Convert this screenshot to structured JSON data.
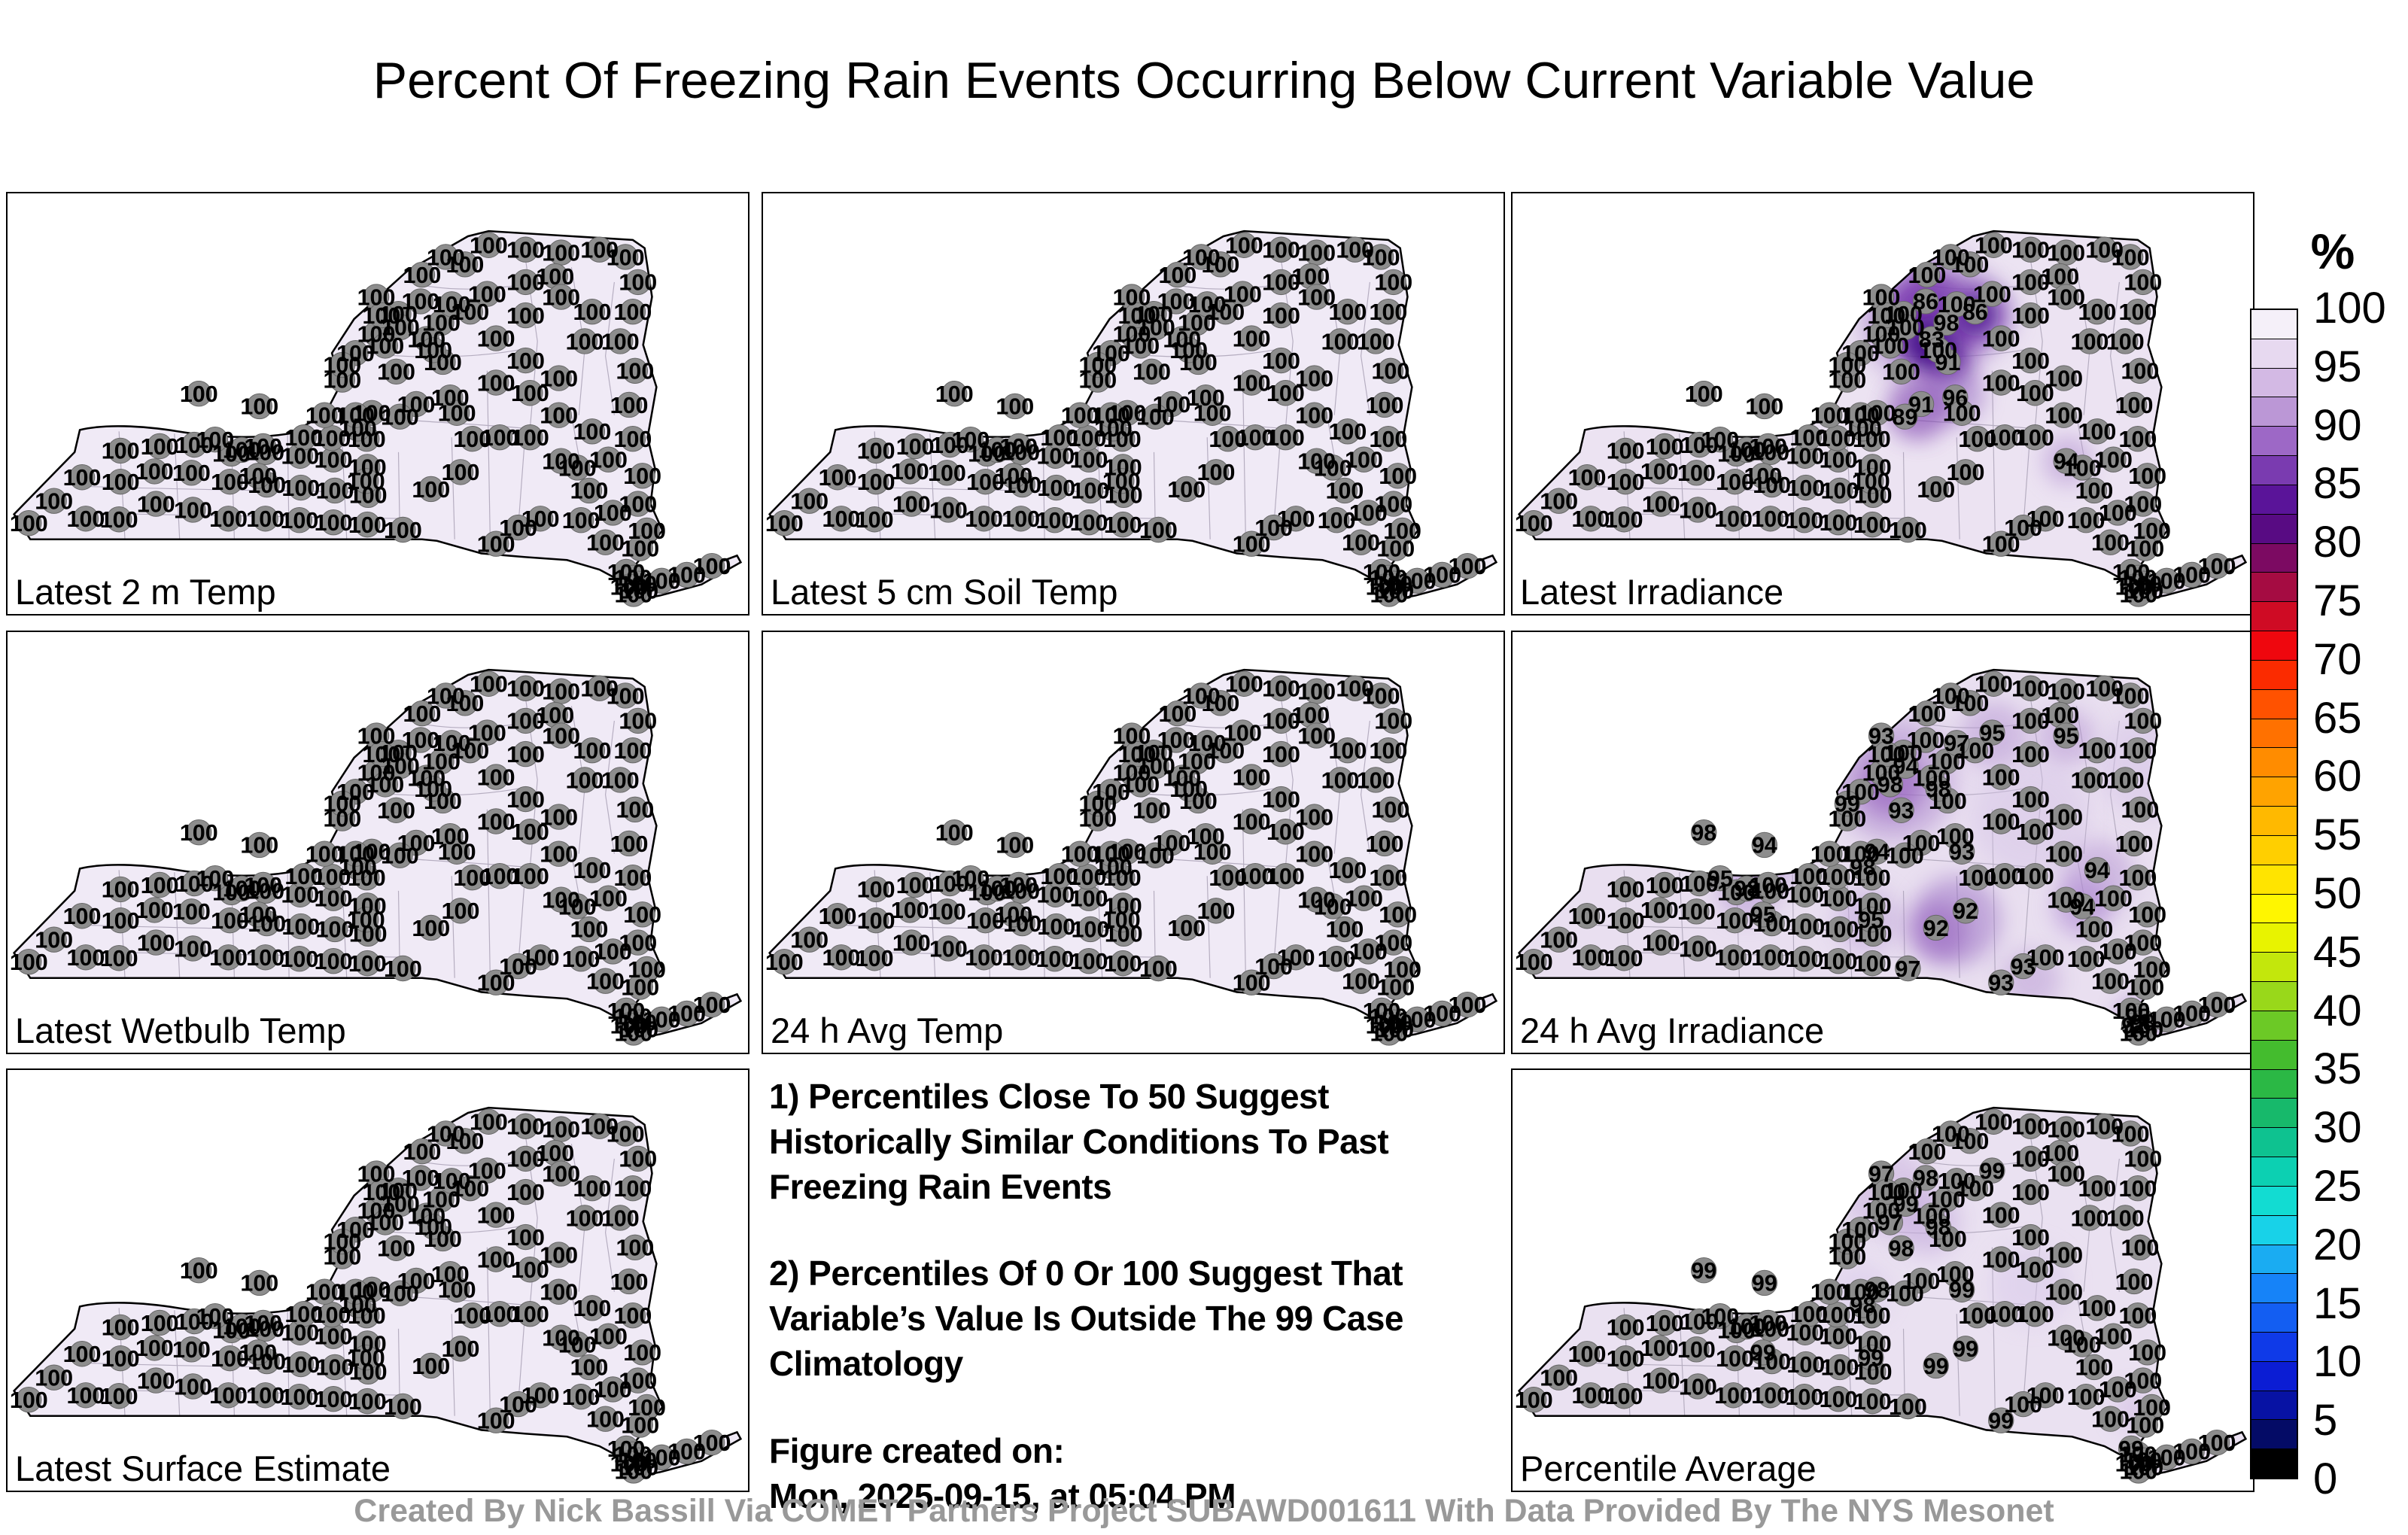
{
  "title": "Percent Of Freezing Rain Events Occurring Below Current Variable Value",
  "credit": "Created By Nick Bassill Via COMET Partners Project SUBAWD001611 With Data Provided By The NYS Mesonet",
  "notes": {
    "note1": "1) Percentiles Close To 50 Suggest Historically Similar Conditions To Past Freezing Rain Events",
    "note2": "2) Percentiles Of 0 Or 100 Suggest That Variable’s Value Is Outside The 99 Case Climatology",
    "created_label": "Figure created on:",
    "created_value": "Mon, 2025-09-15, at 05:04 PM"
  },
  "colorbar": {
    "title": "%",
    "ticks": [
      "100",
      "95",
      "90",
      "85",
      "80",
      "75",
      "70",
      "65",
      "60",
      "55",
      "50",
      "45",
      "40",
      "35",
      "30",
      "25",
      "20",
      "15",
      "10",
      "5",
      "0"
    ],
    "segments": [
      "#f5f0f9",
      "#e7d9f0",
      "#d3b9e4",
      "#bb97d6",
      "#9d68c6",
      "#7a3bb0",
      "#5a1499",
      "#580b83",
      "#7c0a62",
      "#a50c42",
      "#cf0b24",
      "#ef070e",
      "#fb2b00",
      "#ff5200",
      "#ff7100",
      "#ff8c00",
      "#ffa300",
      "#ffb900",
      "#ffcf00",
      "#ffe400",
      "#fff600",
      "#e8f300",
      "#c3e70c",
      "#99d81a",
      "#6cc926",
      "#44bc2e",
      "#2bb845",
      "#17b96b",
      "#0ec290",
      "#0cd0b2",
      "#12dcd2",
      "#18d2e8",
      "#1aacf2",
      "#1683f8",
      "#135ef2",
      "#0f3ae8",
      "#0b1dd4",
      "#0712a4",
      "#040b66",
      "#000000"
    ]
  },
  "chart_data": {
    "type": "scatter",
    "note": "Eight New York State station maps; each station labeled with percent of freezing rain events below current value (0-100).",
    "style": {
      "station_fill": "#8d8d8d",
      "station_edge": "#666666",
      "county_line": "#b5adc0",
      "state_border": "#000000"
    },
    "stations": [
      [
        28,
        446
      ],
      [
        62,
        416
      ],
      [
        105,
        440
      ],
      [
        100,
        384
      ],
      [
        152,
        390
      ],
      [
        150,
        441
      ],
      [
        200,
        420
      ],
      [
        198,
        376
      ],
      [
        152,
        348
      ],
      [
        205,
        342
      ],
      [
        252,
        340
      ],
      [
        248,
        378
      ],
      [
        250,
        428
      ],
      [
        298,
        440
      ],
      [
        300,
        390
      ],
      [
        302,
        352
      ],
      [
        348,
        350
      ],
      [
        350,
        394
      ],
      [
        348,
        440
      ],
      [
        395,
        355
      ],
      [
        396,
        398
      ],
      [
        394,
        442
      ],
      [
        440,
        360
      ],
      [
        442,
        402
      ],
      [
        440,
        445
      ],
      [
        485,
        332
      ],
      [
        486,
        370
      ],
      [
        487,
        408
      ],
      [
        486,
        448
      ],
      [
        438,
        331
      ],
      [
        428,
        300
      ],
      [
        452,
        252
      ],
      [
        470,
        216
      ],
      [
        498,
        190
      ],
      [
        528,
        163
      ],
      [
        558,
        146
      ],
      [
        586,
        175
      ],
      [
        625,
        160
      ],
      [
        566,
        197
      ],
      [
        588,
        228
      ],
      [
        598,
        276
      ],
      [
        552,
        285
      ],
      [
        530,
        302
      ],
      [
        498,
        140
      ],
      [
        531,
        181
      ],
      [
        510,
        206
      ],
      [
        452,
        232
      ],
      [
        560,
        110
      ],
      [
        600,
        150
      ],
      [
        648,
        136
      ],
      [
        575,
        212
      ],
      [
        525,
        241
      ],
      [
        618,
        96
      ],
      [
        592,
        86
      ],
      [
        650,
        70
      ],
      [
        700,
        76
      ],
      [
        748,
        80
      ],
      [
        800,
        76
      ],
      [
        835,
        86
      ],
      [
        852,
        120
      ],
      [
        845,
        160
      ],
      [
        828,
        200
      ],
      [
        848,
        240
      ],
      [
        840,
        286
      ],
      [
        700,
        120
      ],
      [
        740,
        112
      ],
      [
        748,
        140
      ],
      [
        700,
        165
      ],
      [
        660,
        196
      ],
      [
        700,
        226
      ],
      [
        660,
        256
      ],
      [
        706,
        270
      ],
      [
        745,
        250
      ],
      [
        780,
        200
      ],
      [
        790,
        160
      ],
      [
        748,
        362
      ],
      [
        790,
        322
      ],
      [
        770,
        371
      ],
      [
        812,
        360
      ],
      [
        845,
        332
      ],
      [
        858,
        382
      ],
      [
        852,
        420
      ],
      [
        864,
        456
      ],
      [
        818,
        432
      ],
      [
        786,
        402
      ],
      [
        745,
        300
      ],
      [
        706,
        330
      ],
      [
        607,
        297
      ],
      [
        665,
        330
      ],
      [
        628,
        332
      ],
      [
        340,
        288
      ],
      [
        258,
        271
      ],
      [
        492,
        297
      ],
      [
        473,
        318
      ],
      [
        280,
        333
      ],
      [
        316,
        347
      ],
      [
        338,
        382
      ],
      [
        484,
        389
      ],
      [
        612,
        377
      ],
      [
        572,
        400
      ],
      [
        534,
        455
      ],
      [
        660,
        474
      ],
      [
        836,
        512
      ],
      [
        845,
        520
      ],
      [
        852,
        528
      ],
      [
        840,
        532
      ],
      [
        854,
        537
      ],
      [
        846,
        542
      ],
      [
        884,
        524
      ],
      [
        918,
        516
      ],
      [
        952,
        504
      ],
      [
        855,
        480
      ],
      [
        808,
        472
      ],
      [
        775,
        442
      ],
      [
        720,
        440
      ],
      [
        690,
        452
      ],
      [
        400,
        330
      ],
      [
        345,
        342
      ],
      [
        505,
        165
      ],
      [
        470,
        300
      ]
    ],
    "default_value": "100",
    "panels": [
      {
        "label": "Latest 2 m Temp",
        "base": "#f0eaf6",
        "overrides": {},
        "blobs": []
      },
      {
        "label": "Latest 5 cm Soil Temp",
        "base": "#f0eaf6",
        "overrides": {},
        "blobs": []
      },
      {
        "label": "Latest Irradiance",
        "base": "#ece3f2",
        "overrides": {
          "35": "86",
          "36": "98",
          "37": "86",
          "38": "83",
          "39": "91",
          "40": "96",
          "41": "91",
          "42": "89",
          "75": "94"
        },
        "blobs": [
          [
            562,
            168,
            95,
            "#b493d2",
            0.55
          ],
          [
            562,
            168,
            62,
            "#6d28a8",
            0.8
          ],
          [
            570,
            205,
            38,
            "#3f0d85",
            0.85
          ],
          [
            590,
            232,
            26,
            "#5b1f98",
            0.7
          ],
          [
            628,
            164,
            52,
            "#9a6fc4",
            0.5
          ],
          [
            628,
            164,
            30,
            "#4c1190",
            0.8
          ],
          [
            598,
            272,
            40,
            "#9a6fc4",
            0.55
          ],
          [
            548,
            292,
            42,
            "#7c3cae",
            0.6
          ],
          [
            750,
            362,
            34,
            "#b493d2",
            0.55
          ]
        ]
      },
      {
        "label": "Latest Wetbulb Temp",
        "base": "#f0eaf6",
        "overrides": {},
        "blobs": []
      },
      {
        "label": "24 h Avg Temp",
        "base": "#f0eaf6",
        "overrides": {},
        "blobs": []
      },
      {
        "label": "24 h Avg Irradiance",
        "base": "#e9dff0",
        "overrides": {
          "43": "93",
          "44": "94",
          "45": "98",
          "46": "99",
          "48": "97",
          "49": "95",
          "50": "98",
          "51": "93",
          "66": "95",
          "76": "94",
          "77": "94",
          "87": "93",
          "90": "94",
          "91": "98",
          "92": "94",
          "93": "98",
          "94": "95",
          "95": "98",
          "96": "95",
          "97": "95",
          "98": "92",
          "99": "92",
          "100": "97",
          "101": "93",
          "103": "95",
          "104": "98",
          "105": "92",
          "115": "93"
        },
        "blobs": [
          [
            515,
            200,
            85,
            "#b493d2",
            0.55
          ],
          [
            512,
            205,
            45,
            "#8a50b8",
            0.55
          ],
          [
            650,
            140,
            45,
            "#b493d2",
            0.5
          ],
          [
            748,
            142,
            38,
            "#b493d2",
            0.5
          ],
          [
            340,
            300,
            55,
            "#c2a8dc",
            0.55
          ],
          [
            316,
            350,
            40,
            "#b493d2",
            0.5
          ],
          [
            480,
            390,
            45,
            "#c2a8dc",
            0.55
          ],
          [
            600,
            390,
            60,
            "#9a6fc4",
            0.5
          ],
          [
            575,
            405,
            40,
            "#8a50b8",
            0.45
          ],
          [
            790,
            330,
            48,
            "#b493d2",
            0.5
          ],
          [
            770,
            372,
            40,
            "#a87fd0",
            0.5
          ],
          [
            845,
            525,
            30,
            "#9a6fc4",
            0.5
          ],
          [
            700,
            470,
            40,
            "#b493d2",
            0.45
          ],
          [
            860,
            180,
            70,
            "#d4c2e6",
            0.5
          ],
          [
            700,
            250,
            80,
            "#d4c2e6",
            0.45
          ]
        ]
      },
      {
        "label": "Latest Surface Estimate",
        "base": "#f0eaf6",
        "overrides": {},
        "blobs": []
      },
      {
        "label": "Percentile Average",
        "base": "#eae1f1",
        "overrides": {
          "35": "98",
          "43": "97",
          "44": "99",
          "45": "97",
          "49": "99",
          "50": "98",
          "51": "98",
          "87": "99",
          "90": "99",
          "91": "99",
          "92": "98",
          "93": "98",
          "96": "99",
          "97": "99",
          "98": "99",
          "99": "99",
          "101": "99",
          "102": "99"
        },
        "blobs": [
          [
            505,
            165,
            60,
            "#cdb6e0",
            0.6
          ],
          [
            560,
            205,
            45,
            "#c2a8dc",
            0.55
          ],
          [
            700,
            290,
            55,
            "#d8c8ea",
            0.5
          ],
          [
            470,
            300,
            40,
            "#d8c8ea",
            0.5
          ],
          [
            840,
            460,
            28,
            "#cdb6e0",
            0.5
          ]
        ]
      }
    ]
  }
}
